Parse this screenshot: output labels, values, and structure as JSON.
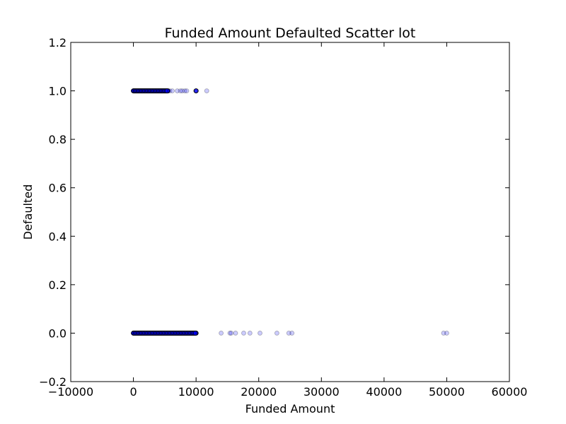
{
  "chart_data": {
    "type": "scatter",
    "title": "Funded Amount Defaulted Scatter lot",
    "xlabel": "Funded Amount",
    "ylabel": "Defaulted",
    "xlim": [
      -10000,
      60000
    ],
    "ylim": [
      -0.2,
      1.2
    ],
    "xticks": [
      -10000,
      0,
      10000,
      20000,
      30000,
      40000,
      50000,
      60000
    ],
    "xtick_labels": [
      "−10000",
      "0",
      "10000",
      "20000",
      "30000",
      "40000",
      "50000",
      "60000"
    ],
    "yticks": [
      -0.2,
      0.0,
      0.2,
      0.4,
      0.6,
      0.8,
      1.0,
      1.2
    ],
    "ytick_labels": [
      "−0.2",
      "0.0",
      "0.2",
      "0.4",
      "0.6",
      "0.8",
      "1.0",
      "1.2"
    ],
    "grid": false,
    "marker_color": "#0000ff",
    "marker_alpha": 0.2,
    "dense_ranges": [
      {
        "x_from": 0,
        "x_to": 10000,
        "y": 0
      },
      {
        "x_from": 0,
        "x_to": 5500,
        "y": 1
      }
    ],
    "series": [
      {
        "points": [
          {
            "x": 5800,
            "y": 1
          },
          {
            "x": 6200,
            "y": 1
          },
          {
            "x": 7000,
            "y": 1
          },
          {
            "x": 7500,
            "y": 1
          },
          {
            "x": 7800,
            "y": 1
          },
          {
            "x": 8200,
            "y": 1
          },
          {
            "x": 8500,
            "y": 1
          },
          {
            "x": 10000,
            "y": 1
          },
          {
            "x": 11700,
            "y": 1
          },
          {
            "x": 14000,
            "y": 0
          },
          {
            "x": 15400,
            "y": 0
          },
          {
            "x": 15600,
            "y": 0
          },
          {
            "x": 16300,
            "y": 0
          },
          {
            "x": 17600,
            "y": 0
          },
          {
            "x": 18600,
            "y": 0
          },
          {
            "x": 20200,
            "y": 0
          },
          {
            "x": 22900,
            "y": 0
          },
          {
            "x": 24800,
            "y": 0
          },
          {
            "x": 25300,
            "y": 0
          },
          {
            "x": 49500,
            "y": 0
          },
          {
            "x": 50000,
            "y": 0
          }
        ]
      }
    ]
  }
}
